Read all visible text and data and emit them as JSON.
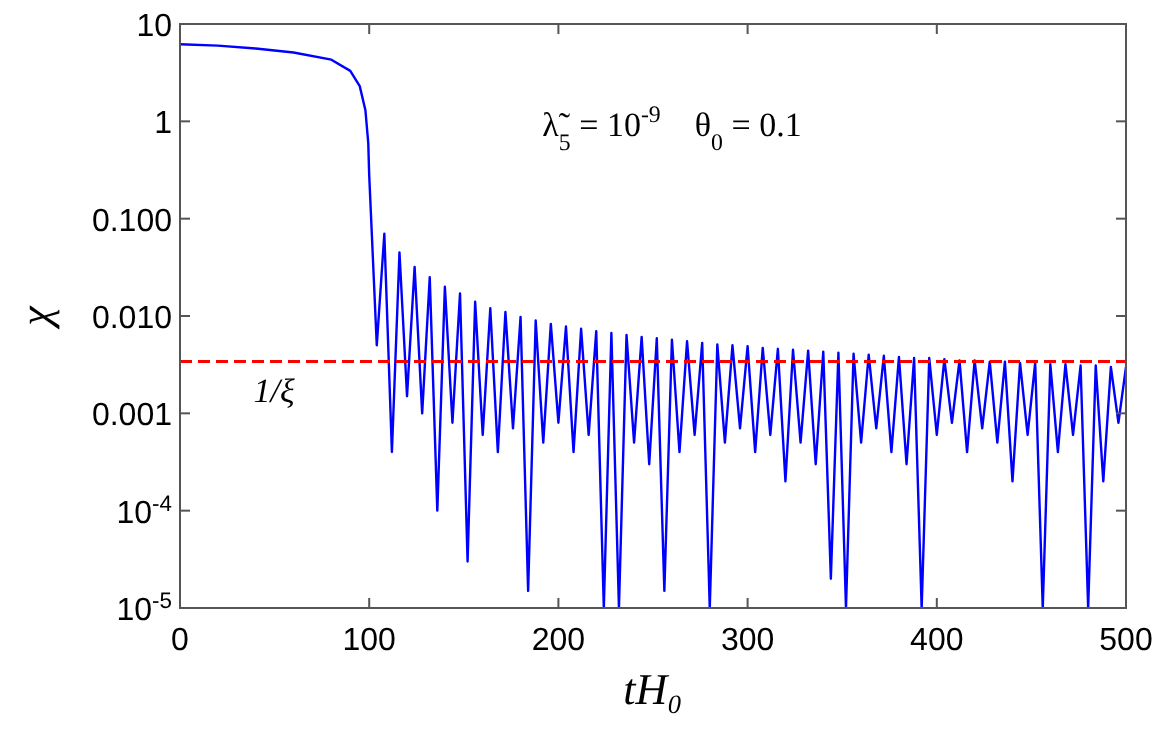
{
  "chart_data": {
    "type": "line",
    "xlabel": "tH₀",
    "ylabel": "χ",
    "log": "y",
    "xlim": [
      0,
      500
    ],
    "ylim": [
      1e-05,
      10
    ],
    "xticks": [
      0,
      100,
      200,
      300,
      400,
      500
    ],
    "yticks": [
      10,
      1,
      {
        "value": 0.1,
        "label": "0.100"
      },
      {
        "value": 0.01,
        "label": "0.010"
      },
      0.001,
      {
        "value": 0.0001,
        "label": "10$^{-4}$"
      },
      {
        "value": 1e-05,
        "label": "10$^{-5}$"
      }
    ],
    "grid": false,
    "annotations": [
      "λ̃$_{5}$ = 10$^{-9}$    θ$_{0}$ = 0.1"
    ],
    "ref_lines": [
      {
        "axis": "y",
        "value": 0.0034,
        "label": "1/ξ",
        "color": "#ff0000",
        "line_style": "dashed"
      }
    ],
    "series": [
      {
        "color": "#0000ff",
        "x": [
          0,
          20,
          40,
          60,
          80,
          90,
          95,
          98,
          99.5,
          100,
          104,
          108,
          112,
          116,
          120,
          124,
          128,
          132,
          136,
          140,
          144,
          148,
          152,
          156,
          160,
          164,
          168,
          172,
          176,
          180,
          184,
          188,
          192,
          196,
          200,
          204,
          208,
          212,
          216,
          220,
          224,
          228,
          232,
          236,
          240,
          244,
          248,
          252,
          256,
          260,
          264,
          268,
          272,
          276,
          280,
          284,
          288,
          292,
          296,
          300,
          304,
          308,
          312,
          316,
          320,
          324,
          328,
          332,
          336,
          340,
          344,
          348,
          352,
          356,
          360,
          364,
          368,
          372,
          376,
          380,
          384,
          388,
          392,
          396,
          400,
          404,
          408,
          412,
          416,
          420,
          424,
          428,
          432,
          436,
          440,
          444,
          448,
          452,
          456,
          460,
          464,
          468,
          472,
          476,
          480,
          484,
          488,
          492,
          496,
          500
        ],
        "values": [
          6.2,
          6,
          5.6,
          5.1,
          4.3,
          3.3,
          2.3,
          1.3,
          0.6,
          0.28,
          0.005,
          0.07,
          0.0004,
          0.045,
          0.0015,
          0.032,
          0.001,
          0.025,
          0.0001,
          0.02,
          0.0008,
          0.017,
          3e-05,
          0.014,
          0.0006,
          0.012,
          0.0004,
          0.011,
          0.0007,
          0.0098,
          1.5e-05,
          0.009,
          0.0005,
          0.0083,
          0.0008,
          0.0078,
          0.0004,
          0.0074,
          0.0006,
          0.007,
          1e-05,
          0.0067,
          1e-05,
          0.0064,
          0.0005,
          0.0061,
          0.0003,
          0.0059,
          1.5e-05,
          0.0057,
          0.0004,
          0.0055,
          0.0006,
          0.0053,
          1e-05,
          0.0051,
          0.0005,
          0.005,
          0.0007,
          0.0049,
          0.0004,
          0.0047,
          0.0006,
          0.0046,
          0.0002,
          0.0045,
          0.0005,
          0.0044,
          0.0003,
          0.0043,
          2e-05,
          0.0042,
          1e-05,
          0.0041,
          0.0005,
          0.004,
          0.0007,
          0.0039,
          0.0004,
          0.0038,
          0.0003,
          0.0037,
          1e-05,
          0.0037,
          0.0006,
          0.0036,
          0.0008,
          0.0035,
          0.0004,
          0.0035,
          0.0007,
          0.0034,
          0.0005,
          0.0034,
          0.0002,
          0.0033,
          0.0006,
          0.0033,
          1e-05,
          0.0032,
          0.0004,
          0.0032,
          0.0006,
          0.0031,
          1e-05,
          0.0031,
          0.0002,
          0.003,
          0.0008,
          0.003
        ]
      }
    ]
  }
}
